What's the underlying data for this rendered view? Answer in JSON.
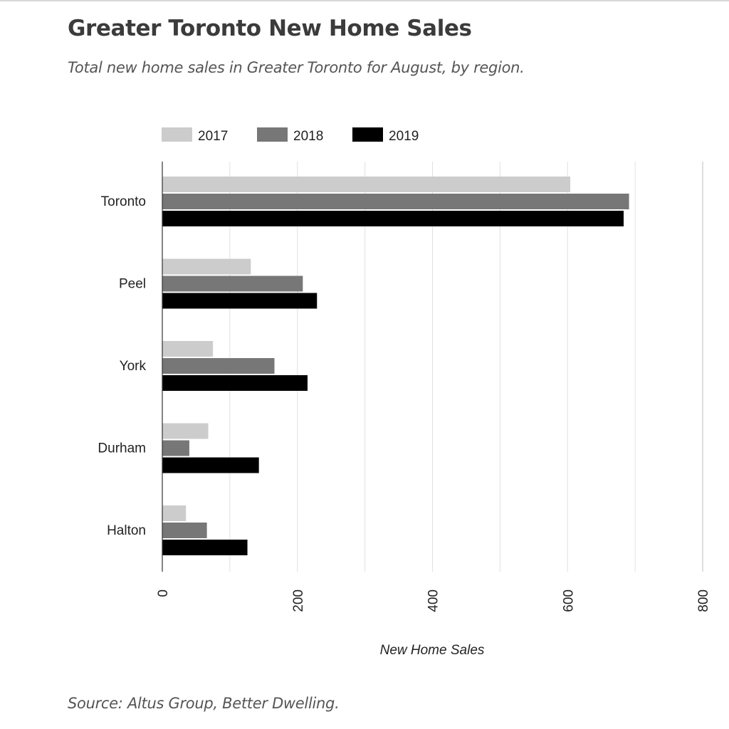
{
  "header": {
    "title": "Greater Toronto New Home Sales",
    "subtitle": "Total new home sales in Greater Toronto for August, by region."
  },
  "footer": {
    "source": "Source: Altus Group, Better Dwelling."
  },
  "chart_data": {
    "type": "bar",
    "orientation": "horizontal",
    "categories": [
      "Toronto",
      "Peel",
      "York",
      "Durham",
      "Halton"
    ],
    "series": [
      {
        "name": "2017",
        "color": "#cccccc",
        "values": [
          604,
          131,
          75,
          68,
          35
        ]
      },
      {
        "name": "2018",
        "color": "#777777",
        "values": [
          691,
          208,
          166,
          40,
          66
        ]
      },
      {
        "name": "2019",
        "color": "#000000",
        "values": [
          683,
          229,
          215,
          143,
          126
        ]
      }
    ],
    "xlabel": "New Home Sales",
    "xlim": [
      0,
      800
    ],
    "xticks": [
      "0",
      "200",
      "400",
      "600",
      "800"
    ],
    "gridlines": true,
    "legend_position": "top"
  }
}
